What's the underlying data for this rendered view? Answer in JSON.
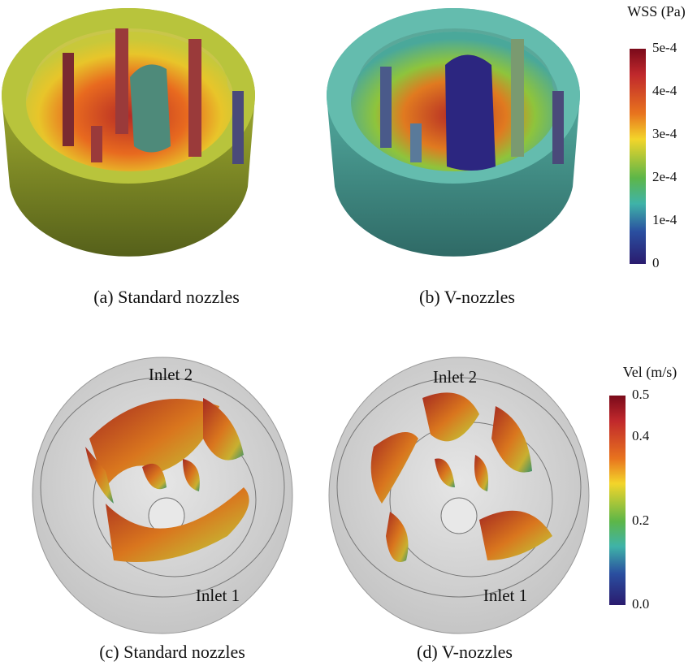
{
  "panels": [
    {
      "caption": "(a) Standard nozzles"
    },
    {
      "caption": "(b) V-nozzles"
    },
    {
      "caption": "(c) Standard nozzles",
      "labels": [
        "Inlet 2",
        "Inlet 1"
      ]
    },
    {
      "caption": "(d) V-nozzles",
      "labels": [
        "Inlet 2",
        "Inlet 1"
      ]
    }
  ],
  "colorbars": [
    {
      "title": "WSS (Pa)",
      "ticks": [
        "5e-4",
        "4e-4",
        "3e-4",
        "2e-4",
        "1e-4",
        "0"
      ]
    },
    {
      "title": "Vel (m/s)",
      "ticks": [
        "0.5",
        "0.4",
        "0.2",
        "0.0"
      ]
    }
  ]
}
